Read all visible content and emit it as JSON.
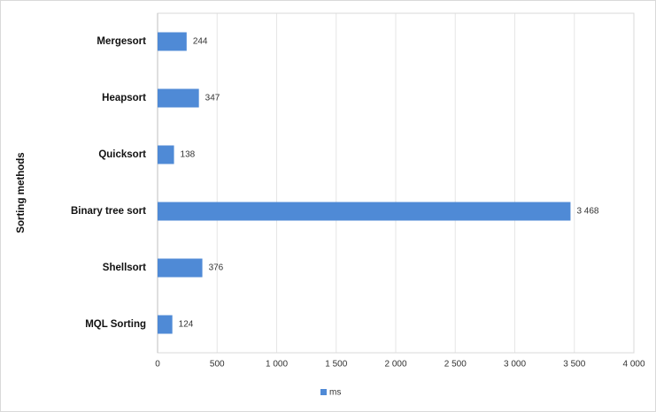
{
  "chart_data": {
    "type": "bar",
    "orientation": "horizontal",
    "y_label": "Sorting methods",
    "categories": [
      "Mergesort",
      "Heapsort",
      "Quicksort",
      "Binary tree sort",
      "Shellsort",
      "MQL Sorting"
    ],
    "series": [
      {
        "name": "ms",
        "color": "#4f8ad6",
        "values": [
          244,
          347,
          138,
          3468,
          376,
          124
        ],
        "value_labels": [
          "244",
          "347",
          "138",
          "3 468",
          "376",
          "124"
        ]
      }
    ],
    "xlim": [
      0,
      4000
    ],
    "xticks": [
      0,
      500,
      {
        "value": 1000,
        "label": "1 000"
      },
      {
        "value": 1500,
        "label": "1 500"
      },
      {
        "value": 2000,
        "label": "2 000"
      },
      {
        "value": 2500,
        "label": "2 500"
      },
      {
        "value": 3000,
        "label": "3 000"
      },
      {
        "value": 3500,
        "label": "3 500"
      },
      {
        "value": 4000,
        "label": "4 000"
      }
    ],
    "grid": true,
    "legend": "bottom"
  }
}
